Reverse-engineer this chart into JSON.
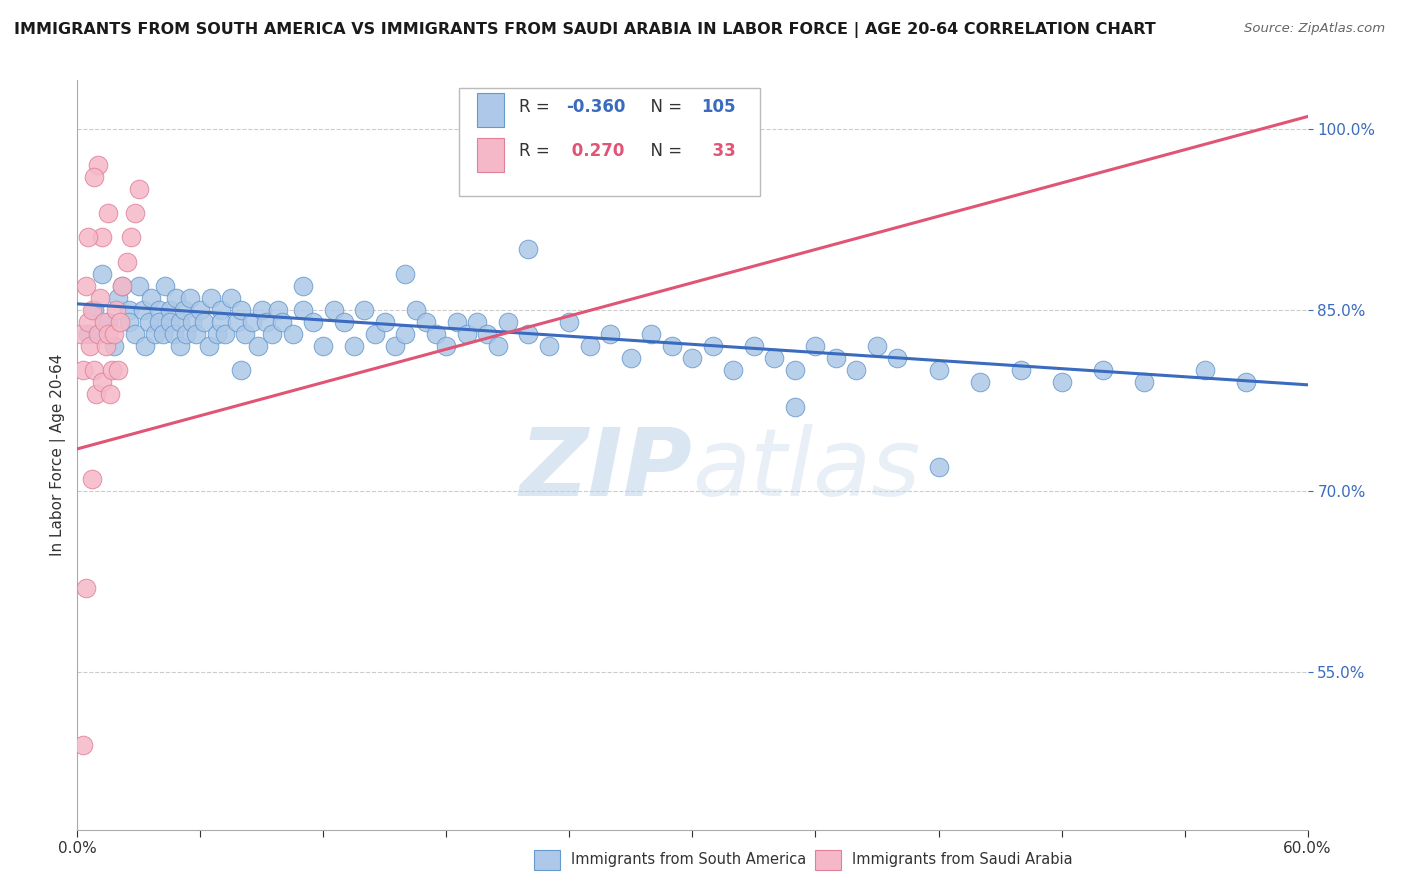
{
  "title": "IMMIGRANTS FROM SOUTH AMERICA VS IMMIGRANTS FROM SAUDI ARABIA IN LABOR FORCE | AGE 20-64 CORRELATION CHART",
  "source": "Source: ZipAtlas.com",
  "ylabel": "In Labor Force | Age 20-64",
  "xlim": [
    0.0,
    0.6
  ],
  "ylim": [
    0.42,
    1.04
  ],
  "yticks": [
    0.55,
    0.7,
    0.85,
    1.0
  ],
  "xticks": [
    0.0,
    0.06,
    0.12,
    0.18,
    0.24,
    0.3,
    0.36,
    0.42,
    0.48,
    0.54,
    0.6
  ],
  "xtick_labels": [
    "0.0%",
    "",
    "",
    "",
    "",
    "",
    "",
    "",
    "",
    "",
    "60.0%"
  ],
  "blue_R": -0.36,
  "blue_N": 105,
  "pink_R": 0.27,
  "pink_N": 33,
  "blue_color": "#adc8e8",
  "blue_edge": "#6699cc",
  "pink_color": "#f5b8c8",
  "pink_edge": "#e08098",
  "blue_line_color": "#3a6bbf",
  "pink_line_color": "#e05575",
  "watermark_color": "#c8ddf0",
  "legend_blue": "Immigrants from South America",
  "legend_pink": "Immigrants from Saudi Arabia",
  "blue_line_y0": 0.855,
  "blue_line_y1": 0.788,
  "pink_line_y0": 0.735,
  "pink_line_y1": 1.01,
  "blue_scatter_x": [
    0.005,
    0.008,
    0.01,
    0.012,
    0.015,
    0.018,
    0.02,
    0.022,
    0.025,
    0.025,
    0.028,
    0.03,
    0.032,
    0.033,
    0.035,
    0.036,
    0.038,
    0.04,
    0.04,
    0.042,
    0.043,
    0.045,
    0.045,
    0.047,
    0.048,
    0.05,
    0.05,
    0.052,
    0.053,
    0.055,
    0.056,
    0.058,
    0.06,
    0.062,
    0.064,
    0.065,
    0.068,
    0.07,
    0.07,
    0.072,
    0.075,
    0.078,
    0.08,
    0.082,
    0.085,
    0.088,
    0.09,
    0.092,
    0.095,
    0.098,
    0.1,
    0.105,
    0.11,
    0.115,
    0.12,
    0.125,
    0.13,
    0.135,
    0.14,
    0.145,
    0.15,
    0.155,
    0.16,
    0.165,
    0.17,
    0.175,
    0.18,
    0.185,
    0.19,
    0.195,
    0.2,
    0.205,
    0.21,
    0.22,
    0.23,
    0.24,
    0.25,
    0.26,
    0.27,
    0.28,
    0.29,
    0.3,
    0.31,
    0.32,
    0.33,
    0.34,
    0.35,
    0.36,
    0.37,
    0.38,
    0.39,
    0.4,
    0.42,
    0.44,
    0.46,
    0.48,
    0.5,
    0.52,
    0.55,
    0.57,
    0.22,
    0.16,
    0.08,
    0.35,
    0.11,
    0.42
  ],
  "blue_scatter_y": [
    0.83,
    0.85,
    0.83,
    0.88,
    0.84,
    0.82,
    0.86,
    0.87,
    0.85,
    0.84,
    0.83,
    0.87,
    0.85,
    0.82,
    0.84,
    0.86,
    0.83,
    0.85,
    0.84,
    0.83,
    0.87,
    0.85,
    0.84,
    0.83,
    0.86,
    0.84,
    0.82,
    0.85,
    0.83,
    0.86,
    0.84,
    0.83,
    0.85,
    0.84,
    0.82,
    0.86,
    0.83,
    0.85,
    0.84,
    0.83,
    0.86,
    0.84,
    0.85,
    0.83,
    0.84,
    0.82,
    0.85,
    0.84,
    0.83,
    0.85,
    0.84,
    0.83,
    0.85,
    0.84,
    0.82,
    0.85,
    0.84,
    0.82,
    0.85,
    0.83,
    0.84,
    0.82,
    0.83,
    0.85,
    0.84,
    0.83,
    0.82,
    0.84,
    0.83,
    0.84,
    0.83,
    0.82,
    0.84,
    0.83,
    0.82,
    0.84,
    0.82,
    0.83,
    0.81,
    0.83,
    0.82,
    0.81,
    0.82,
    0.8,
    0.82,
    0.81,
    0.8,
    0.82,
    0.81,
    0.8,
    0.82,
    0.81,
    0.8,
    0.79,
    0.8,
    0.79,
    0.8,
    0.79,
    0.8,
    0.79,
    0.9,
    0.88,
    0.8,
    0.77,
    0.87,
    0.72
  ],
  "pink_scatter_x": [
    0.002,
    0.003,
    0.004,
    0.005,
    0.006,
    0.007,
    0.008,
    0.009,
    0.01,
    0.011,
    0.012,
    0.013,
    0.014,
    0.015,
    0.016,
    0.017,
    0.018,
    0.019,
    0.02,
    0.021,
    0.022,
    0.024,
    0.026,
    0.028,
    0.03,
    0.01,
    0.012,
    0.015,
    0.008,
    0.005,
    0.003,
    0.004,
    0.007
  ],
  "pink_scatter_y": [
    0.83,
    0.8,
    0.87,
    0.84,
    0.82,
    0.85,
    0.8,
    0.78,
    0.83,
    0.86,
    0.79,
    0.84,
    0.82,
    0.83,
    0.78,
    0.8,
    0.83,
    0.85,
    0.8,
    0.84,
    0.87,
    0.89,
    0.91,
    0.93,
    0.95,
    0.97,
    0.91,
    0.93,
    0.96,
    0.91,
    0.49,
    0.62,
    0.71
  ]
}
